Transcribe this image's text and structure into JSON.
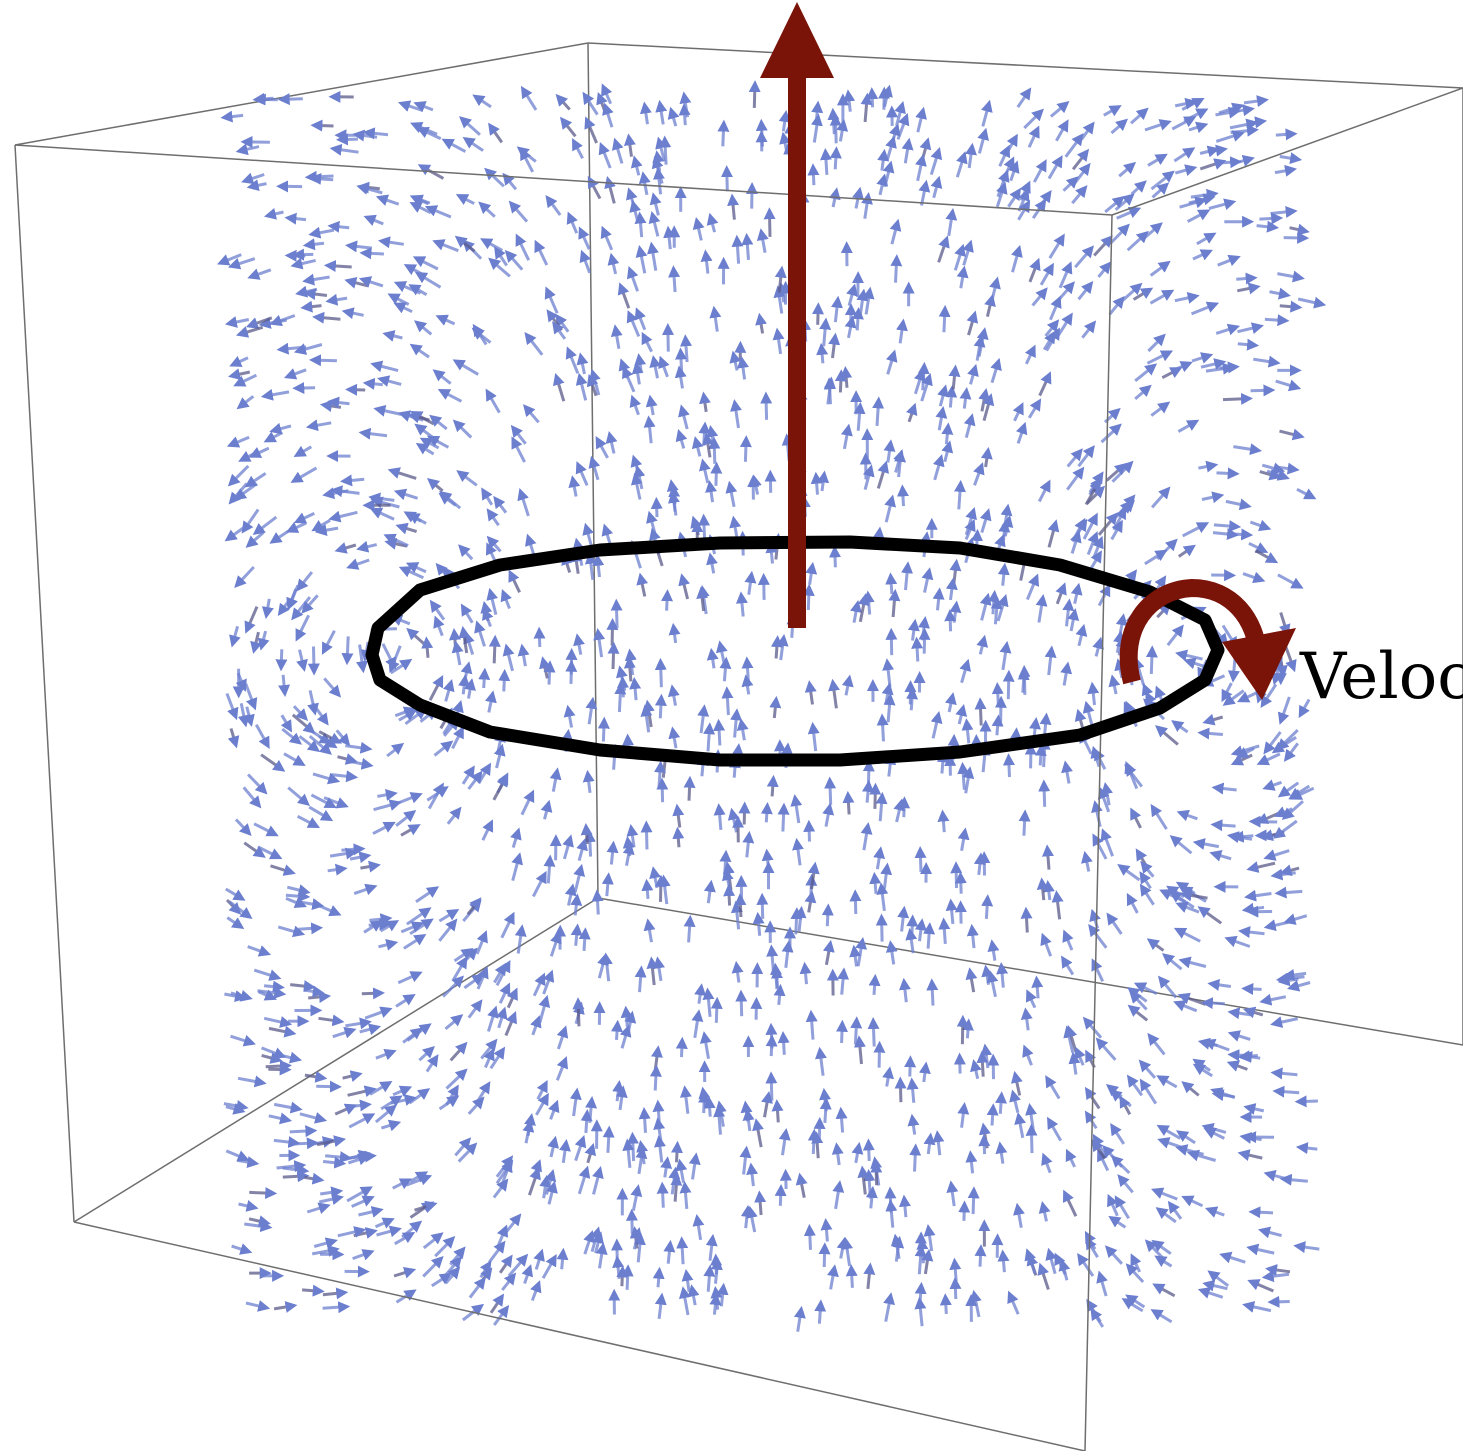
{
  "figure": {
    "label_text": "Veloc",
    "colors": {
      "background": "#ffffff",
      "frame": "#6e6e6e",
      "field_arrow": "#6c7fcf",
      "field_arrow_dark": "#5a5a8a",
      "ring": "#000000",
      "axis_arrow": "#7a1308",
      "rotation_arrow": "#7a1308",
      "label": "#000000"
    },
    "icons": {
      "axis_arrow": "up-arrow-icon",
      "rotation_arrow": "curved-arrow-icon"
    }
  }
}
